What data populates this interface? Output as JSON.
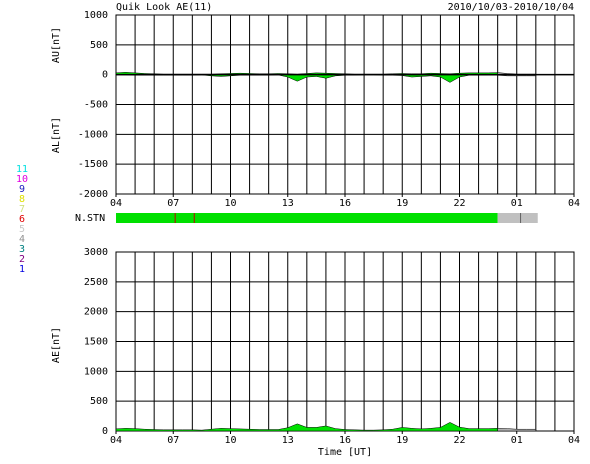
{
  "header": {
    "title": "Quik Look AE(11)",
    "period": "2010/10/03-2010/10/04",
    "xlabel": "Time [UT]"
  },
  "stations": {
    "labels": [
      "11",
      "10",
      "9",
      "8",
      "7",
      "6",
      "5",
      "4",
      "3",
      "2",
      "1"
    ],
    "colors": [
      "#00e0e0",
      "#e000e0",
      "#2020c0",
      "#e0e000",
      "#d0e080",
      "#e00000",
      "#c8c8c8",
      "#909090",
      "#008080",
      "#800080",
      "#0000e0"
    ]
  },
  "nstn": {
    "label": "N.STN",
    "segments": [
      {
        "start": 0,
        "end": 20,
        "color": "#00e000"
      },
      {
        "start": 20,
        "end": 22.1,
        "color": "#c0c0c0"
      }
    ],
    "markers": [
      3.1,
      4.1,
      21.2
    ]
  },
  "chart_data": [
    {
      "type": "area",
      "ylabels": [
        "AU[nT]",
        "AL[nT]"
      ],
      "provisional_from": 20,
      "color": "#00e000",
      "provisional_color": "#b0b0b0",
      "grid_step": 1,
      "xlim": [
        0,
        24
      ],
      "xticks": [
        {
          "value": 0,
          "label": "04"
        },
        {
          "value": 3,
          "label": "07"
        },
        {
          "value": 6,
          "label": "10"
        },
        {
          "value": 9,
          "label": "13"
        },
        {
          "value": 12,
          "label": "16"
        },
        {
          "value": 15,
          "label": "19"
        },
        {
          "value": 18,
          "label": "22"
        },
        {
          "value": 21,
          "label": "01"
        },
        {
          "value": 24,
          "label": "04"
        }
      ],
      "ylim": [
        -2000,
        1000
      ],
      "yticks": [
        1000,
        500,
        0,
        -500,
        -1000,
        -1500,
        -2000
      ],
      "x": [
        0,
        0.5,
        1,
        1.5,
        2,
        2.5,
        3,
        3.5,
        4,
        4.5,
        5,
        5.5,
        6,
        6.5,
        7,
        7.5,
        8,
        8.5,
        9,
        9.5,
        10,
        10.5,
        11,
        11.5,
        12,
        12.5,
        13,
        13.5,
        14,
        14.5,
        15,
        15.5,
        16,
        16.5,
        17,
        17.5,
        18,
        18.5,
        19,
        19.5,
        20,
        20.5,
        21,
        21.5,
        22
      ],
      "series": [
        {
          "values": [
            30,
            40,
            30,
            20,
            15,
            10,
            10,
            10,
            10,
            10,
            10,
            15,
            20,
            25,
            20,
            15,
            15,
            20,
            15,
            10,
            20,
            30,
            25,
            20,
            15,
            10,
            10,
            10,
            10,
            15,
            20,
            15,
            15,
            25,
            20,
            15,
            25,
            30,
            30,
            30,
            35,
            20,
            10,
            10,
            10
          ]
        },
        {
          "values": [
            -5,
            -5,
            -10,
            -10,
            -10,
            -10,
            -10,
            -10,
            -10,
            -5,
            -20,
            -30,
            -20,
            -10,
            -10,
            -10,
            -10,
            -5,
            -40,
            -110,
            -40,
            -30,
            -60,
            -20,
            -10,
            -10,
            -5,
            -5,
            -10,
            -10,
            -15,
            -40,
            -30,
            -20,
            -40,
            -130,
            -40,
            -10,
            -10,
            -10,
            -10,
            -20,
            -20,
            -20,
            -20
          ]
        }
      ]
    },
    {
      "type": "area",
      "ylabels": [
        "AE[nT]"
      ],
      "provisional_from": 20,
      "color": "#00e000",
      "provisional_color": "#b0b0b0",
      "grid_step": 1,
      "xlim": [
        0,
        24
      ],
      "xticks": [
        {
          "value": 0,
          "label": "04"
        },
        {
          "value": 3,
          "label": "07"
        },
        {
          "value": 6,
          "label": "10"
        },
        {
          "value": 9,
          "label": "13"
        },
        {
          "value": 12,
          "label": "16"
        },
        {
          "value": 15,
          "label": "19"
        },
        {
          "value": 18,
          "label": "22"
        },
        {
          "value": 21,
          "label": "01"
        },
        {
          "value": 24,
          "label": "04"
        }
      ],
      "ylim": [
        0,
        3000
      ],
      "yticks": [
        3000,
        2500,
        2000,
        1500,
        1000,
        500,
        0
      ],
      "x": [
        0,
        0.5,
        1,
        1.5,
        2,
        2.5,
        3,
        3.5,
        4,
        4.5,
        5,
        5.5,
        6,
        6.5,
        7,
        7.5,
        8,
        8.5,
        9,
        9.5,
        10,
        10.5,
        11,
        11.5,
        12,
        12.5,
        13,
        13.5,
        14,
        14.5,
        15,
        15.5,
        16,
        16.5,
        17,
        17.5,
        18,
        18.5,
        19,
        19.5,
        20,
        20.5,
        21,
        21.5,
        22
      ],
      "series": [
        {
          "values": [
            35,
            45,
            40,
            30,
            25,
            20,
            20,
            20,
            20,
            15,
            30,
            45,
            40,
            35,
            30,
            25,
            25,
            25,
            55,
            120,
            60,
            60,
            85,
            40,
            25,
            20,
            15,
            15,
            20,
            30,
            60,
            45,
            35,
            45,
            60,
            145,
            65,
            40,
            40,
            40,
            45,
            40,
            30,
            30,
            30
          ]
        }
      ]
    }
  ]
}
